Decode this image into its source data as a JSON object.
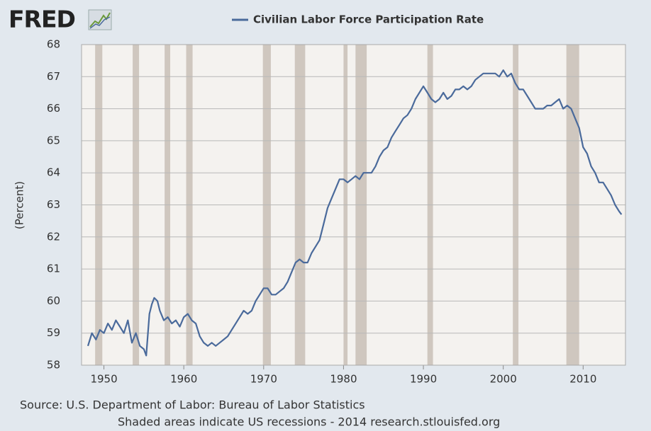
{
  "chart_data": {
    "type": "line",
    "logo": "FRED",
    "ylabel": "(Percent)",
    "source": "Source: U.S. Department of Labor: Bureau of Labor Statistics",
    "note": "Shaded areas indicate US recessions - 2014 research.stlouisfed.org",
    "xlim": [
      1947.2,
      2015.3
    ],
    "xticks": [
      1950,
      1960,
      1970,
      1980,
      1990,
      2000,
      2010
    ],
    "ylim": [
      58,
      68
    ],
    "yticks": [
      58,
      59,
      60,
      61,
      62,
      63,
      64,
      65,
      66,
      67,
      68
    ],
    "grid": true,
    "recession_color": "#cfc7bf",
    "recessions": [
      [
        1948.9,
        1949.8
      ],
      [
        1953.6,
        1954.4
      ],
      [
        1957.6,
        1958.3
      ],
      [
        1960.3,
        1961.1
      ],
      [
        1969.9,
        1970.9
      ],
      [
        1973.9,
        1975.2
      ],
      [
        1980.0,
        1980.5
      ],
      [
        1981.5,
        1982.9
      ],
      [
        1990.5,
        1991.2
      ],
      [
        2001.2,
        2001.9
      ],
      [
        2007.9,
        2009.5
      ]
    ],
    "x": [
      1948.0,
      1948.5,
      1949.0,
      1949.5,
      1950.0,
      1950.5,
      1951.0,
      1951.5,
      1952.0,
      1952.5,
      1953.0,
      1953.5,
      1954.0,
      1954.5,
      1955.0,
      1955.3,
      1955.7,
      1956.0,
      1956.3,
      1956.7,
      1957.0,
      1957.5,
      1958.0,
      1958.5,
      1959.0,
      1959.5,
      1960.0,
      1960.5,
      1961.0,
      1961.5,
      1962.0,
      1962.5,
      1963.0,
      1963.5,
      1964.0,
      1964.5,
      1965.0,
      1965.5,
      1966.0,
      1966.5,
      1967.0,
      1967.5,
      1968.0,
      1968.5,
      1969.0,
      1969.5,
      1970.0,
      1970.5,
      1971.0,
      1971.5,
      1972.0,
      1972.5,
      1973.0,
      1973.5,
      1974.0,
      1974.5,
      1975.0,
      1975.5,
      1976.0,
      1976.5,
      1977.0,
      1977.5,
      1978.0,
      1978.5,
      1979.0,
      1979.5,
      1980.0,
      1980.5,
      1981.0,
      1981.5,
      1982.0,
      1982.5,
      1983.0,
      1983.5,
      1984.0,
      1984.5,
      1985.0,
      1985.5,
      1986.0,
      1986.5,
      1987.0,
      1987.5,
      1988.0,
      1988.5,
      1989.0,
      1989.5,
      1990.0,
      1990.5,
      1991.0,
      1991.5,
      1992.0,
      1992.5,
      1993.0,
      1993.5,
      1994.0,
      1994.5,
      1995.0,
      1995.5,
      1996.0,
      1996.5,
      1997.0,
      1997.5,
      1998.0,
      1998.5,
      1999.0,
      1999.5,
      2000.0,
      2000.5,
      2001.0,
      2001.5,
      2002.0,
      2002.5,
      2003.0,
      2003.5,
      2004.0,
      2004.5,
      2005.0,
      2005.5,
      2006.0,
      2006.5,
      2007.0,
      2007.5,
      2008.0,
      2008.5,
      2009.0,
      2009.5,
      2010.0,
      2010.5,
      2011.0,
      2011.5,
      2012.0,
      2012.5,
      2013.0,
      2013.5,
      2014.0,
      2014.5,
      2014.8
    ],
    "series": [
      {
        "name": "Civilian Labor Force Participation Rate",
        "color": "#4a6a9b",
        "values": [
          58.6,
          59.0,
          58.8,
          59.1,
          59.0,
          59.3,
          59.1,
          59.4,
          59.2,
          59.0,
          59.4,
          58.7,
          59.0,
          58.6,
          58.5,
          58.3,
          59.6,
          59.9,
          60.1,
          60.0,
          59.7,
          59.4,
          59.5,
          59.3,
          59.4,
          59.2,
          59.5,
          59.6,
          59.4,
          59.3,
          58.9,
          58.7,
          58.6,
          58.7,
          58.6,
          58.7,
          58.8,
          58.9,
          59.1,
          59.3,
          59.5,
          59.7,
          59.6,
          59.7,
          60.0,
          60.2,
          60.4,
          60.4,
          60.2,
          60.2,
          60.3,
          60.4,
          60.6,
          60.9,
          61.2,
          61.3,
          61.2,
          61.2,
          61.5,
          61.7,
          61.9,
          62.4,
          62.9,
          63.2,
          63.5,
          63.8,
          63.8,
          63.7,
          63.8,
          63.9,
          63.8,
          64.0,
          64.0,
          64.0,
          64.2,
          64.5,
          64.7,
          64.8,
          65.1,
          65.3,
          65.5,
          65.7,
          65.8,
          66.0,
          66.3,
          66.5,
          66.7,
          66.5,
          66.3,
          66.2,
          66.3,
          66.5,
          66.3,
          66.4,
          66.6,
          66.6,
          66.7,
          66.6,
          66.7,
          66.9,
          67.0,
          67.1,
          67.1,
          67.1,
          67.1,
          67.0,
          67.2,
          67.0,
          67.1,
          66.8,
          66.6,
          66.6,
          66.4,
          66.2,
          66.0,
          66.0,
          66.0,
          66.1,
          66.1,
          66.2,
          66.3,
          66.0,
          66.1,
          66.0,
          65.7,
          65.4,
          64.8,
          64.6,
          64.2,
          64.0,
          63.7,
          63.7,
          63.5,
          63.3,
          63.0,
          62.8,
          62.7
        ]
      }
    ]
  }
}
